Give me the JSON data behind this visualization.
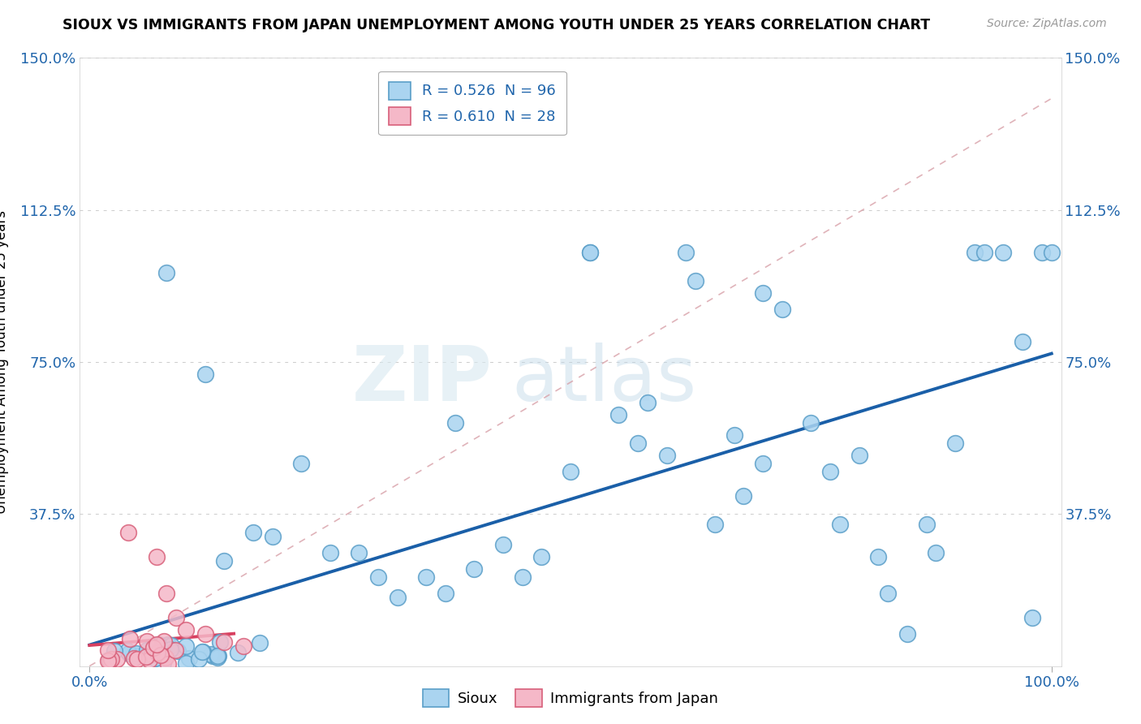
{
  "title": "SIOUX VS IMMIGRANTS FROM JAPAN UNEMPLOYMENT AMONG YOUTH UNDER 25 YEARS CORRELATION CHART",
  "source": "Source: ZipAtlas.com",
  "ylabel": "Unemployment Among Youth under 25 years",
  "ytick_vals": [
    0.0,
    0.375,
    0.75,
    1.125,
    1.5
  ],
  "ytick_labels": [
    "",
    "37.5%",
    "75.0%",
    "112.5%",
    "150.0%"
  ],
  "legend1_label": "R = 0.526  N = 96",
  "legend2_label": "R = 0.610  N = 28",
  "sioux_color": "#aad4f0",
  "japan_color": "#f5b8c8",
  "sioux_edge": "#5a9ec8",
  "japan_edge": "#d8607a",
  "trend_sioux_color": "#1a5fa8",
  "trend_japan_color": "#d84060",
  "trend_dashed_color": "#d08090",
  "background_color": "#ffffff",
  "watermark": "ZIPatlas",
  "xlim": [
    0.0,
    1.0
  ],
  "ylim": [
    0.0,
    1.5
  ]
}
